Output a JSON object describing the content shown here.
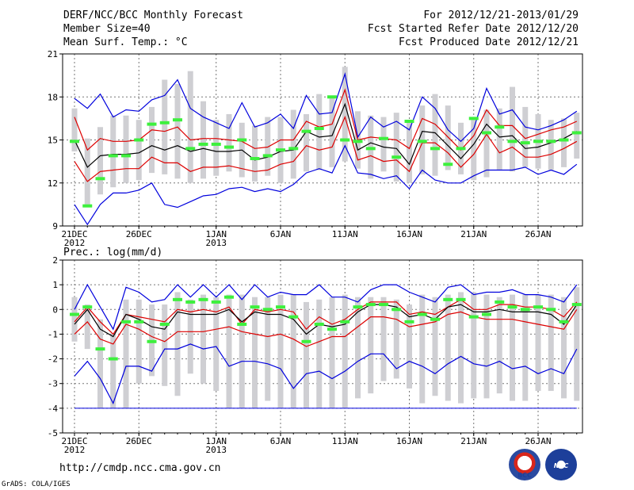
{
  "header": {
    "title": "DERF/NCC/BCC Monthly Forecast",
    "member_size": "Member Size=40",
    "variable": "Mean Surf. Temp.: °C",
    "period": "For 2012/12/21-2013/01/29",
    "started": "Fcst Started Refer Date 2012/12/20",
    "produced": "Fcst Produced Date 2012/12/21"
  },
  "footer": {
    "url": "http://cmdp.ncc.cma.gov.cn",
    "grads": "GrADS: COLA/IGES",
    "logo_bcc": "BCC",
    "logo_ncc": "NCC"
  },
  "colors": {
    "box": "#cfcfd3",
    "median": "#3df03d",
    "envelope": "#0000dd",
    "band": "#dd0000",
    "mean": "#000000",
    "grid": "#777777"
  },
  "chart_data": [
    {
      "type": "box-ensemble",
      "title": "Mean Surf. Temp.: °C",
      "ylim": [
        9,
        21
      ],
      "yticks": [
        9,
        12,
        15,
        18,
        21
      ],
      "x_ticks": [
        {
          "day": 0,
          "label": "21DEC",
          "sub": "2012"
        },
        {
          "day": 5,
          "label": "26DEC"
        },
        {
          "day": 11,
          "label": "1JAN",
          "sub": "2013"
        },
        {
          "day": 16,
          "label": "6JAN"
        },
        {
          "day": 21,
          "label": "11JAN"
        },
        {
          "day": 26,
          "label": "16JAN"
        },
        {
          "day": 31,
          "label": "21JAN"
        },
        {
          "day": 36,
          "label": "26JAN"
        }
      ],
      "days": 40,
      "box_low": [
        14.2,
        10.5,
        11.2,
        11.7,
        12.0,
        12.2,
        12.7,
        12.6,
        12.3,
        12.0,
        12.3,
        12.5,
        12.8,
        12.4,
        12.1,
        12.5,
        12.0,
        12.3,
        12.8,
        12.9,
        13.1,
        13.5,
        13.0,
        12.3,
        12.8,
        12.1,
        12.0,
        12.6,
        12.5,
        12.9,
        12.6,
        12.2,
        12.4,
        12.9,
        12.8,
        13.1,
        13.0,
        12.9,
        13.1,
        13.7
      ],
      "box_high": [
        17.2,
        15.1,
        15.9,
        16.7,
        16.7,
        16.4,
        17.3,
        19.2,
        18.9,
        19.8,
        17.7,
        16.4,
        16.8,
        16.2,
        16.0,
        16.6,
        16.6,
        17.1,
        16.8,
        18.2,
        17.9,
        20.1,
        17.0,
        16.7,
        16.6,
        16.9,
        16.4,
        17.4,
        18.2,
        17.4,
        16.2,
        16.4,
        17.1,
        17.2,
        18.7,
        17.3,
        16.8,
        16.4,
        16.5,
        16.9
      ],
      "median": [
        14.9,
        10.4,
        12.3,
        13.9,
        13.9,
        15.0,
        16.1,
        16.2,
        16.4,
        14.4,
        14.7,
        14.7,
        14.5,
        15.0,
        13.7,
        13.9,
        14.3,
        14.4,
        15.6,
        15.8,
        18.0,
        15.0,
        14.9,
        14.4,
        15.1,
        13.8,
        16.3,
        14.9,
        14.4,
        13.3,
        14.4,
        16.5,
        15.5,
        15.9,
        14.9,
        14.8,
        14.9,
        14.9,
        15.0,
        15.5
      ],
      "series": [
        {
          "name": "max",
          "role": "envelope",
          "values": [
            17.9,
            17.2,
            18.2,
            16.6,
            17.1,
            17.0,
            17.8,
            18.1,
            19.2,
            17.2,
            16.6,
            16.2,
            15.8,
            17.6,
            15.9,
            16.2,
            16.8,
            15.8,
            18.1,
            16.8,
            16.9,
            19.6,
            15.2,
            16.6,
            15.9,
            16.3,
            15.7,
            18.0,
            17.2,
            15.7,
            14.9,
            15.8,
            18.6,
            16.8,
            17.1,
            15.9,
            15.7,
            16.0,
            16.4,
            17.0
          ]
        },
        {
          "name": "upper",
          "role": "band",
          "values": [
            16.6,
            14.3,
            15.1,
            14.9,
            14.9,
            15.0,
            15.7,
            15.6,
            15.9,
            15.0,
            15.1,
            15.1,
            15.0,
            14.9,
            14.4,
            14.5,
            15.0,
            15.0,
            16.3,
            15.9,
            16.1,
            18.5,
            15.0,
            15.2,
            15.1,
            15.0,
            14.4,
            16.5,
            16.1,
            15.2,
            14.3,
            15.3,
            17.1,
            16.0,
            16.0,
            15.1,
            15.4,
            15.7,
            15.9,
            16.3
          ]
        },
        {
          "name": "mean",
          "role": "mean",
          "values": [
            15.0,
            13.1,
            13.9,
            14.0,
            14.0,
            14.1,
            14.6,
            14.3,
            14.6,
            14.2,
            14.4,
            14.2,
            14.2,
            14.3,
            13.6,
            13.8,
            14.2,
            14.3,
            15.6,
            15.2,
            15.3,
            17.5,
            14.3,
            14.8,
            14.5,
            14.4,
            13.3,
            15.6,
            15.5,
            14.6,
            13.7,
            14.7,
            16.1,
            15.2,
            15.3,
            14.4,
            14.5,
            14.8,
            15.1,
            15.6
          ]
        },
        {
          "name": "lower",
          "role": "band",
          "values": [
            13.5,
            12.1,
            12.8,
            12.9,
            13.0,
            13.0,
            13.8,
            13.4,
            13.4,
            12.8,
            13.1,
            13.1,
            13.2,
            13.0,
            12.8,
            12.9,
            13.3,
            13.5,
            14.6,
            14.3,
            14.5,
            16.6,
            13.6,
            13.9,
            13.5,
            13.6,
            12.8,
            14.8,
            14.8,
            14.1,
            13.1,
            14.0,
            15.4,
            14.1,
            14.5,
            13.8,
            13.8,
            14.0,
            14.4,
            14.9
          ]
        },
        {
          "name": "min",
          "role": "envelope",
          "values": [
            10.5,
            9.1,
            10.5,
            11.3,
            11.3,
            11.5,
            12.0,
            10.5,
            10.3,
            10.7,
            11.1,
            11.2,
            11.6,
            11.7,
            11.4,
            11.6,
            11.4,
            11.9,
            12.7,
            13.0,
            12.7,
            14.6,
            12.7,
            12.6,
            12.3,
            12.5,
            11.6,
            12.9,
            12.2,
            12.0,
            12.0,
            12.5,
            12.9,
            12.9,
            12.9,
            13.1,
            12.6,
            12.9,
            12.6,
            13.3
          ]
        }
      ]
    },
    {
      "type": "box-ensemble",
      "title": "Prec.: log(mm/d)",
      "ylim": [
        -5,
        2
      ],
      "yticks": [
        -5,
        -4,
        -3,
        -2,
        -1,
        0,
        1,
        2
      ],
      "x_ticks": [
        {
          "day": 0,
          "label": "21DEC",
          "sub": "2012"
        },
        {
          "day": 5,
          "label": "26DEC"
        },
        {
          "day": 11,
          "label": "1JAN",
          "sub": "2013"
        },
        {
          "day": 16,
          "label": "6JAN"
        },
        {
          "day": 21,
          "label": "11JAN"
        },
        {
          "day": 26,
          "label": "16JAN"
        },
        {
          "day": 31,
          "label": "21JAN"
        },
        {
          "day": 36,
          "label": "26JAN"
        }
      ],
      "days": 40,
      "box_low": [
        -1.3,
        -1.6,
        -4.0,
        -4.0,
        -4.0,
        -3.0,
        -2.7,
        -3.1,
        -3.5,
        -2.6,
        -3.0,
        -3.3,
        -4.0,
        -4.0,
        -4.0,
        -3.7,
        -4.0,
        -4.0,
        -4.0,
        -4.0,
        -4.0,
        -4.0,
        -3.6,
        -3.4,
        -2.9,
        -2.8,
        -3.2,
        -3.8,
        -3.5,
        -3.7,
        -3.8,
        -3.6,
        -3.6,
        -3.4,
        -3.7,
        -3.7,
        -3.3,
        -3.3,
        -3.6,
        -3.7
      ],
      "box_high": [
        0.5,
        0.2,
        -0.4,
        -1.0,
        0.4,
        0.4,
        0.2,
        0.2,
        0.7,
        0.4,
        0.6,
        0.5,
        0.6,
        0.6,
        0.5,
        0.5,
        0.6,
        0.6,
        0.3,
        0.4,
        0.5,
        0.6,
        0.5,
        0.5,
        0.5,
        0.4,
        0.2,
        0.6,
        0.5,
        0.6,
        0.7,
        0.7,
        0.6,
        0.5,
        0.6,
        0.6,
        0.6,
        0.6,
        0.5,
        0.9
      ],
      "median": [
        -0.2,
        0.1,
        -1.6,
        -2.0,
        -0.5,
        -0.5,
        -1.3,
        -0.6,
        0.4,
        0.3,
        0.4,
        0.3,
        0.5,
        -0.6,
        0.1,
        0.0,
        0.1,
        -0.3,
        -1.3,
        -0.6,
        -0.8,
        -0.5,
        0.1,
        0.2,
        0.2,
        0.0,
        -0.5,
        -0.2,
        -0.4,
        0.4,
        0.4,
        -0.3,
        -0.2,
        0.3,
        0.1,
        0.0,
        0.1,
        0.0,
        -0.5,
        0.2
      ],
      "series": [
        {
          "name": "max",
          "role": "envelope",
          "values": [
            0.0,
            1.0,
            0.1,
            -0.8,
            0.9,
            0.7,
            0.3,
            0.4,
            1.0,
            0.5,
            1.0,
            0.5,
            1.0,
            0.4,
            1.0,
            0.5,
            0.7,
            0.6,
            0.6,
            1.0,
            0.5,
            0.5,
            0.3,
            0.8,
            1.0,
            1.0,
            0.7,
            0.5,
            0.3,
            0.9,
            1.0,
            0.6,
            0.7,
            0.7,
            0.8,
            0.6,
            0.6,
            0.5,
            0.3,
            1.0
          ]
        },
        {
          "name": "upper",
          "role": "band",
          "values": [
            -0.5,
            0.1,
            -0.5,
            -1.0,
            -0.2,
            -0.3,
            -0.4,
            -0.5,
            0.0,
            -0.1,
            0.0,
            -0.1,
            0.1,
            -0.6,
            0.0,
            -0.1,
            0.0,
            -0.1,
            -0.8,
            -0.3,
            -0.6,
            -0.4,
            0.0,
            0.3,
            0.3,
            0.3,
            -0.2,
            -0.1,
            -0.2,
            0.1,
            0.4,
            0.0,
            0.0,
            0.2,
            0.2,
            0.1,
            0.1,
            0.0,
            -0.3,
            0.3
          ]
        },
        {
          "name": "mean",
          "role": "mean",
          "values": [
            -0.6,
            0.0,
            -0.8,
            -1.1,
            -0.2,
            -0.4,
            -0.7,
            -0.8,
            -0.1,
            -0.2,
            -0.2,
            -0.2,
            0.0,
            -0.5,
            -0.1,
            -0.2,
            -0.2,
            -0.4,
            -1.0,
            -0.6,
            -0.7,
            -0.6,
            -0.1,
            0.2,
            0.2,
            0.1,
            -0.3,
            -0.2,
            -0.4,
            0.1,
            0.2,
            -0.1,
            -0.1,
            0.0,
            -0.1,
            -0.1,
            -0.1,
            -0.2,
            -0.6,
            0.2
          ]
        },
        {
          "name": "lower",
          "role": "band",
          "values": [
            -1.0,
            -0.5,
            -1.2,
            -1.4,
            -0.6,
            -0.8,
            -1.1,
            -1.3,
            -0.9,
            -0.9,
            -0.9,
            -0.8,
            -0.7,
            -0.9,
            -1.0,
            -1.1,
            -1.0,
            -1.2,
            -1.5,
            -1.3,
            -1.1,
            -1.1,
            -0.7,
            -0.3,
            -0.3,
            -0.4,
            -0.7,
            -0.6,
            -0.5,
            -0.2,
            -0.1,
            -0.3,
            -0.4,
            -0.4,
            -0.4,
            -0.5,
            -0.6,
            -0.7,
            -0.8,
            0.0
          ]
        },
        {
          "name": "min",
          "role": "envelope",
          "values": [
            -2.7,
            -2.1,
            -2.8,
            -3.8,
            -2.3,
            -2.3,
            -2.5,
            -1.6,
            -1.6,
            -1.4,
            -1.6,
            -1.5,
            -2.3,
            -2.1,
            -2.1,
            -2.2,
            -2.4,
            -3.2,
            -2.6,
            -2.5,
            -2.8,
            -2.5,
            -2.1,
            -1.8,
            -1.8,
            -2.4,
            -2.1,
            -2.3,
            -2.6,
            -2.2,
            -1.9,
            -2.2,
            -2.3,
            -2.1,
            -2.4,
            -2.3,
            -2.6,
            -2.4,
            -2.6,
            -1.6
          ]
        },
        {
          "name": "floor",
          "role": "floor",
          "values": [
            -4,
            -4,
            -4,
            -4,
            -4,
            -4,
            -4,
            -4,
            -4,
            -4,
            -4,
            -4,
            -4,
            -4,
            -4,
            -4,
            -4,
            -4,
            -4,
            -4,
            -4,
            -4,
            -4,
            -4,
            -4,
            -4,
            -4,
            -4,
            -4,
            -4,
            -4,
            -4,
            -4,
            -4,
            -4,
            -4,
            -4,
            -4,
            -4,
            -4
          ]
        }
      ]
    }
  ]
}
